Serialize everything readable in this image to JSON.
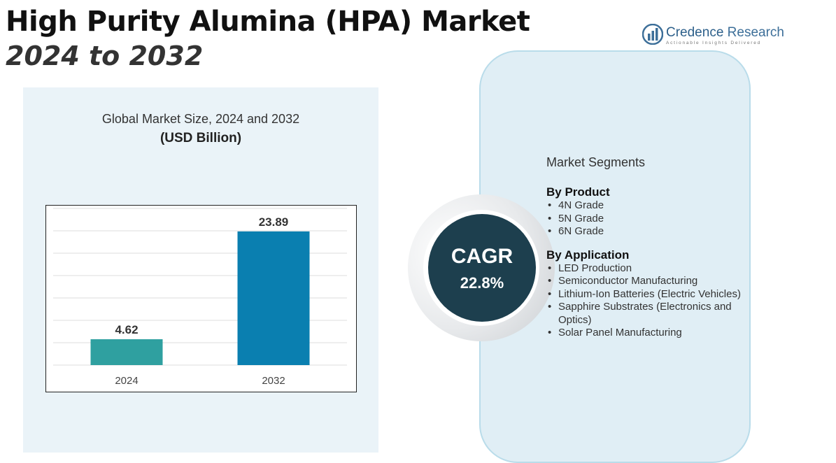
{
  "header": {
    "title_line1": "High Purity Alumina (HPA) Market",
    "title_line2": "2024 to 2032"
  },
  "logo": {
    "name_part1": "Credence",
    "name_part2": " Research",
    "tagline": "Actionable Insights Delivered"
  },
  "chart_data": {
    "type": "bar",
    "title": "Global Market Size, 2024 and 2032",
    "unit_label": "(USD Billion)",
    "categories": [
      "2024",
      "2032"
    ],
    "values": [
      4.62,
      23.89
    ],
    "value_labels": [
      "4.62",
      "23.89"
    ],
    "colors": [
      "#2fa0a0",
      "#0a7fb0"
    ],
    "ylim": [
      0,
      28
    ],
    "grid": true,
    "xlabel": "",
    "ylabel": ""
  },
  "cagr": {
    "label": "CAGR",
    "value": "22.8%"
  },
  "segments": {
    "heading": "Market Segments",
    "groups": [
      {
        "title": "By Product",
        "items": [
          "4N Grade",
          "5N Grade",
          "6N Grade"
        ]
      },
      {
        "title": "By Application",
        "items": [
          "LED Production",
          "Semiconductor Manufacturing",
          "Lithium-Ion Batteries (Electric Vehicles)",
          "Sapphire Substrates (Electronics and Optics)",
          "Solar Panel Manufacturing"
        ]
      }
    ]
  }
}
